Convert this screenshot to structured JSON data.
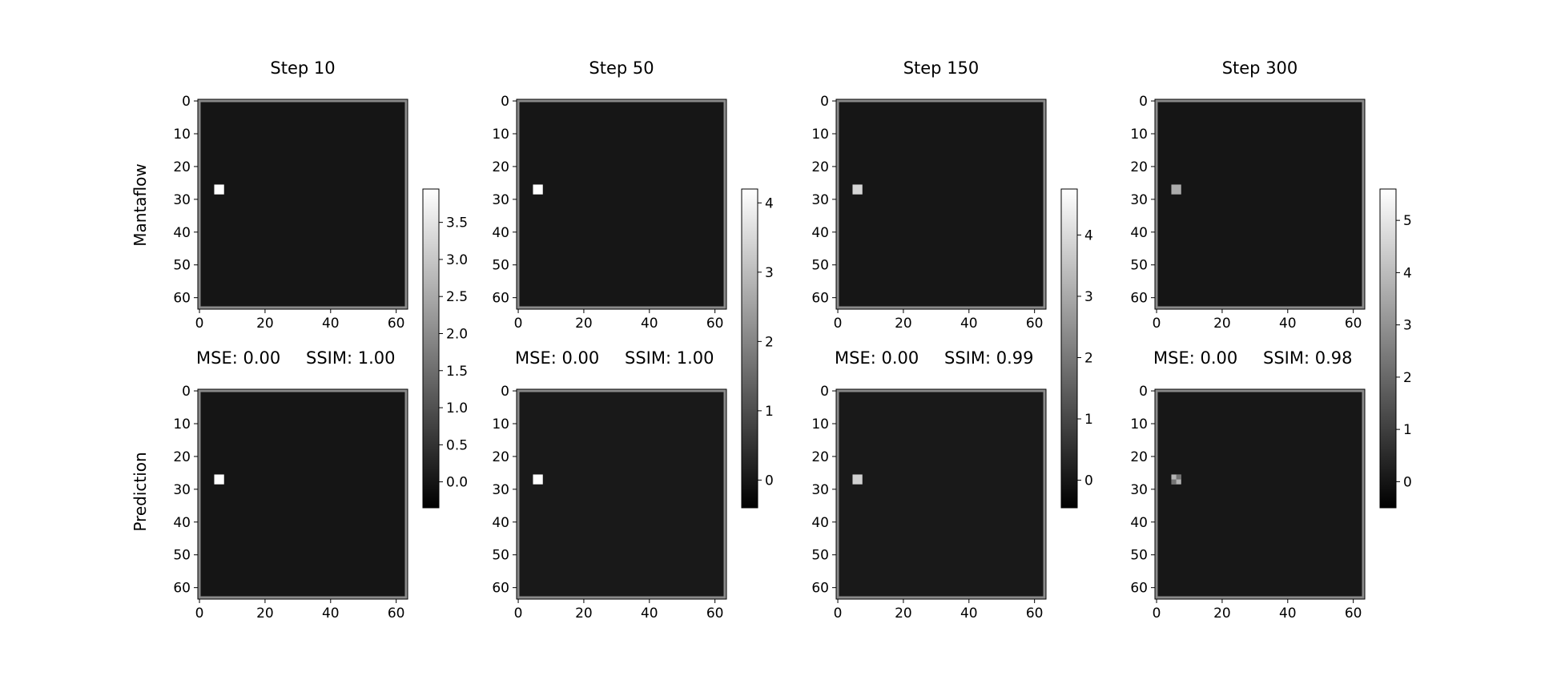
{
  "figure": {
    "row_labels": [
      "Mantaflow",
      "Prediction"
    ]
  },
  "chart_data": [
    {
      "type": "heatmap",
      "title": "Step 10",
      "xlim": [
        0,
        63
      ],
      "ylim": [
        0,
        63
      ],
      "xticks": [
        0,
        20,
        40,
        60
      ],
      "yticks": [
        0,
        10,
        20,
        30,
        40,
        50,
        60
      ],
      "colormap": "gray",
      "colorbar": {
        "min": -0.35,
        "max": 3.95,
        "ticks": [
          "0.0",
          "0.5",
          "1.0",
          "1.5",
          "2.0",
          "2.5",
          "3.0",
          "3.5"
        ]
      },
      "metrics": {
        "mse": "MSE: 0.00",
        "ssim": "SSIM: 1.00"
      },
      "mantaflow": {
        "background": 0,
        "hotspot": {
          "x": 6,
          "y": 27,
          "size": 3,
          "value": 3.95
        }
      },
      "prediction": {
        "background": 0,
        "hotspot": {
          "x": 6,
          "y": 27,
          "size": 3,
          "value": 3.95
        }
      }
    },
    {
      "type": "heatmap",
      "title": "Step 50",
      "xlim": [
        0,
        63
      ],
      "ylim": [
        0,
        63
      ],
      "xticks": [
        0,
        20,
        40,
        60
      ],
      "yticks": [
        0,
        10,
        20,
        30,
        40,
        50,
        60
      ],
      "colormap": "gray",
      "colorbar": {
        "min": -0.4,
        "max": 4.2,
        "ticks": [
          "0",
          "1",
          "2",
          "3",
          "4"
        ]
      },
      "metrics": {
        "mse": "MSE: 0.00",
        "ssim": "SSIM: 1.00"
      },
      "mantaflow": {
        "background": 0,
        "hotspot": {
          "x": 6,
          "y": 27,
          "size": 3,
          "value": 4.2
        }
      },
      "prediction": {
        "background": 0.05,
        "hotspot": {
          "x": 6,
          "y": 27,
          "size": 3,
          "value": 4.2
        }
      }
    },
    {
      "type": "heatmap",
      "title": "Step 150",
      "xlim": [
        0,
        63
      ],
      "ylim": [
        0,
        63
      ],
      "xticks": [
        0,
        20,
        40,
        60
      ],
      "yticks": [
        0,
        10,
        20,
        30,
        40,
        50,
        60
      ],
      "colormap": "gray",
      "colorbar": {
        "min": -0.45,
        "max": 4.75,
        "ticks": [
          "0",
          "1",
          "2",
          "3",
          "4"
        ]
      },
      "metrics": {
        "mse": "MSE: 0.00",
        "ssim": "SSIM: 0.99"
      },
      "mantaflow": {
        "background": 0,
        "hotspot": {
          "x": 6,
          "y": 27,
          "size": 3,
          "value": 3.9
        }
      },
      "prediction": {
        "background": 0.05,
        "hotspot": {
          "x": 6,
          "y": 27,
          "size": 3,
          "value": 3.8
        }
      }
    },
    {
      "type": "heatmap",
      "title": "Step 300",
      "xlim": [
        0,
        63
      ],
      "ylim": [
        0,
        63
      ],
      "xticks": [
        0,
        20,
        40,
        60
      ],
      "yticks": [
        0,
        10,
        20,
        30,
        40,
        50,
        60
      ],
      "colormap": "gray",
      "colorbar": {
        "min": -0.5,
        "max": 5.6,
        "ticks": [
          "0",
          "1",
          "2",
          "3",
          "4",
          "5"
        ]
      },
      "metrics": {
        "mse": "MSE: 0.00",
        "ssim": "SSIM: 0.98"
      },
      "mantaflow": {
        "background": 0,
        "hotspot": {
          "x": 6,
          "y": 27,
          "size": 3,
          "value": 3.6
        }
      },
      "prediction": {
        "background": 0.05,
        "hotspot": {
          "x": 6,
          "y": 27,
          "size": 3,
          "value": 3.8,
          "checker": true
        }
      }
    }
  ]
}
